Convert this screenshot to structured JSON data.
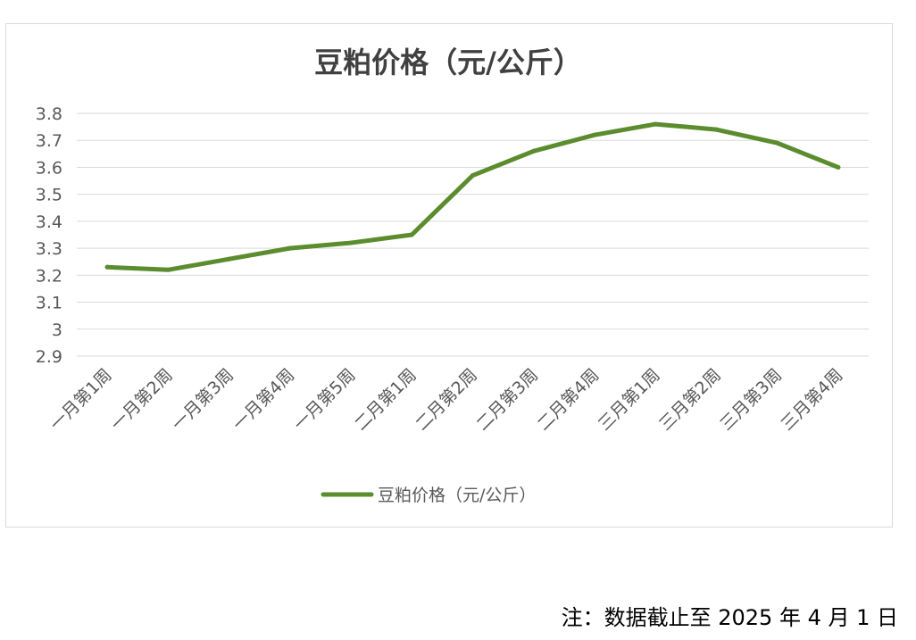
{
  "chart_data": {
    "type": "line",
    "title": "豆粕价格（元/公斤）",
    "categories": [
      "一月第1周",
      "一月第2周",
      "一月第3周",
      "一月第4周",
      "一月第5周",
      "二月第1周",
      "二月第2周",
      "二月第3周",
      "二月第4周",
      "三月第1周",
      "三月第2周",
      "三月第3周",
      "三月第4周"
    ],
    "series": [
      {
        "name": "豆粕价格（元/公斤）",
        "values": [
          3.23,
          3.22,
          3.26,
          3.3,
          3.32,
          3.35,
          3.57,
          3.66,
          3.72,
          3.76,
          3.74,
          3.69,
          3.6
        ]
      }
    ],
    "ylim": [
      2.9,
      3.8
    ],
    "yticks": [
      2.9,
      3,
      3.1,
      3.2,
      3.3,
      3.4,
      3.5,
      3.6,
      3.7,
      3.8
    ],
    "grid": true,
    "legend": "bottom",
    "colors": {
      "line": "#5b8c2e",
      "grid": "#d9d9d9",
      "axis_text": "#595959",
      "title": "#404040"
    }
  },
  "footnote": "注：数据截止至 2025 年 4 月 1 日"
}
